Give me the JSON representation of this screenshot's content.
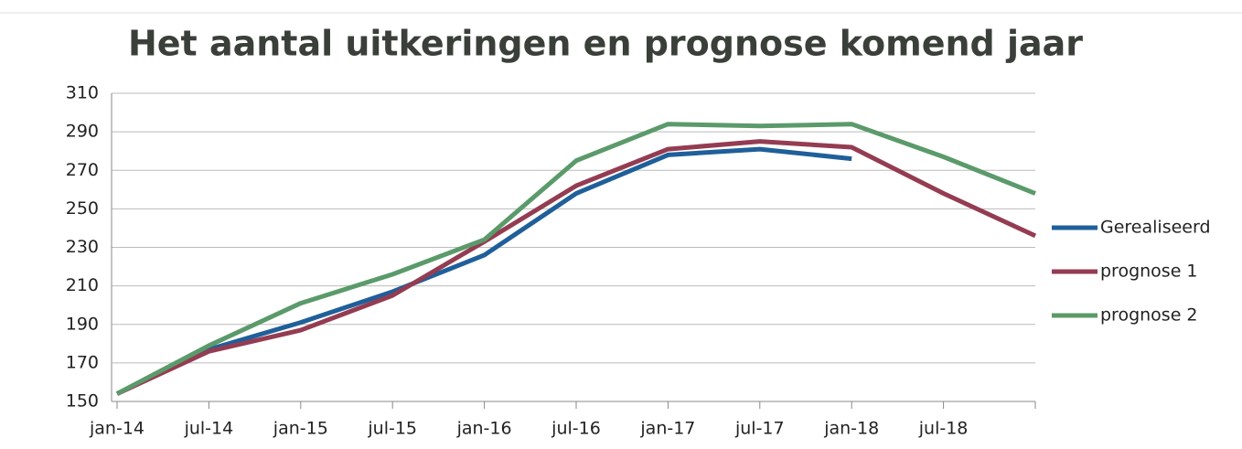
{
  "chart_data": {
    "type": "line",
    "title": "Het aantal uitkeringen en prognose komend jaar",
    "categories": [
      "jan-14",
      "jul-14",
      "jan-15",
      "jul-15",
      "jan-16",
      "jul-16",
      "jan-17",
      "jul-17",
      "jan-18",
      "jul-18",
      null
    ],
    "series": [
      {
        "name": "Gerealiseerd",
        "color": "#1f5f9a",
        "values": [
          154,
          177,
          191,
          207,
          226,
          258,
          278,
          281,
          276,
          null,
          null
        ]
      },
      {
        "name": "prognose 1",
        "color": "#943c52",
        "values": [
          154,
          176,
          187,
          205,
          233,
          262,
          281,
          285,
          282,
          258,
          236
        ]
      },
      {
        "name": "prognose 2",
        "color": "#5b9a6a",
        "values": [
          154,
          179,
          201,
          216,
          234,
          275,
          294,
          293,
          294,
          277,
          258
        ]
      }
    ],
    "ylim": [
      150,
      310
    ],
    "yticks": [
      150,
      170,
      190,
      210,
      230,
      250,
      270,
      290,
      310
    ],
    "grid": true,
    "legend": "right"
  }
}
